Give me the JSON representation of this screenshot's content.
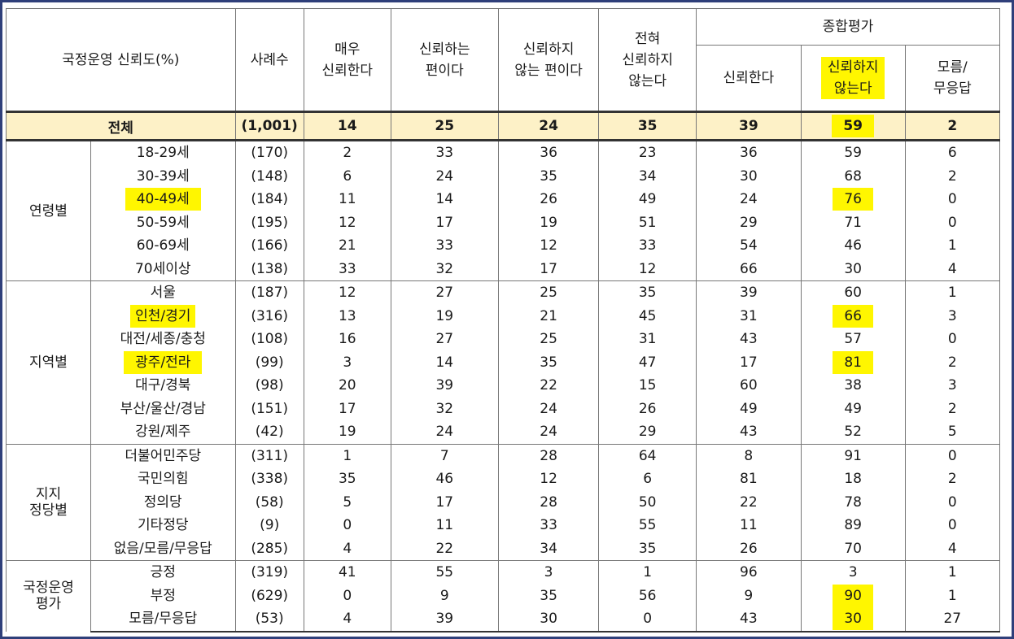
{
  "header": {
    "title": "국정운영 신뢰도(%)",
    "cases": "사례수",
    "very_trust": [
      "매우",
      "신뢰한다"
    ],
    "somewhat_trust": [
      "신뢰하는",
      "편이다"
    ],
    "somewhat_distrust": [
      "신뢰하지",
      "않는 편이다"
    ],
    "not_at_all": [
      "전혀",
      "신뢰하지",
      "않는다"
    ],
    "summary": "종합평가",
    "trust": "신뢰한다",
    "distrust": [
      "신뢰하지",
      "않는다"
    ],
    "dont_know": [
      "모름/",
      "무응답"
    ]
  },
  "total": {
    "label": "전체",
    "values": [
      "(1,001)",
      "14",
      "25",
      "24",
      "35",
      "39",
      "59",
      "2"
    ]
  },
  "groups": [
    {
      "label": [
        "연령별"
      ],
      "rows": [
        {
          "label": "18-29세",
          "values": [
            "(170)",
            "2",
            "33",
            "36",
            "23",
            "36",
            "59",
            "6"
          ]
        },
        {
          "label": "30-39세",
          "values": [
            "(148)",
            "6",
            "24",
            "35",
            "34",
            "30",
            "68",
            "2"
          ]
        },
        {
          "label": "40-49세",
          "values": [
            "(184)",
            "11",
            "14",
            "26",
            "49",
            "24",
            "76",
            "0"
          ]
        },
        {
          "label": "50-59세",
          "values": [
            "(195)",
            "12",
            "17",
            "19",
            "51",
            "29",
            "71",
            "0"
          ]
        },
        {
          "label": "60-69세",
          "values": [
            "(166)",
            "21",
            "33",
            "12",
            "33",
            "54",
            "46",
            "1"
          ]
        },
        {
          "label": "70세이상",
          "values": [
            "(138)",
            "33",
            "32",
            "17",
            "12",
            "66",
            "30",
            "4"
          ]
        }
      ]
    },
    {
      "label": [
        "지역별"
      ],
      "rows": [
        {
          "label": "서울",
          "values": [
            "(187)",
            "12",
            "27",
            "25",
            "35",
            "39",
            "60",
            "1"
          ]
        },
        {
          "label": "인천/경기",
          "values": [
            "(316)",
            "13",
            "19",
            "21",
            "45",
            "31",
            "66",
            "3"
          ]
        },
        {
          "label": "대전/세종/충청",
          "values": [
            "(108)",
            "16",
            "27",
            "25",
            "31",
            "43",
            "57",
            "0"
          ]
        },
        {
          "label": "광주/전라",
          "values": [
            "(99)",
            "3",
            "14",
            "35",
            "47",
            "17",
            "81",
            "2"
          ]
        },
        {
          "label": "대구/경북",
          "values": [
            "(98)",
            "20",
            "39",
            "22",
            "15",
            "60",
            "38",
            "3"
          ]
        },
        {
          "label": "부산/울산/경남",
          "values": [
            "(151)",
            "17",
            "32",
            "24",
            "26",
            "49",
            "49",
            "2"
          ]
        },
        {
          "label": "강원/제주",
          "values": [
            "(42)",
            "19",
            "24",
            "24",
            "29",
            "43",
            "52",
            "5"
          ]
        }
      ]
    },
    {
      "label": [
        "지지",
        "정당별"
      ],
      "rows": [
        {
          "label": "더불어민주당",
          "values": [
            "(311)",
            "1",
            "7",
            "28",
            "64",
            "8",
            "91",
            "0"
          ]
        },
        {
          "label": "국민의힘",
          "values": [
            "(338)",
            "35",
            "46",
            "12",
            "6",
            "81",
            "18",
            "2"
          ]
        },
        {
          "label": "정의당",
          "values": [
            "(58)",
            "5",
            "17",
            "28",
            "50",
            "22",
            "78",
            "0"
          ]
        },
        {
          "label": "기타정당",
          "values": [
            "(9)",
            "0",
            "11",
            "33",
            "55",
            "11",
            "89",
            "0"
          ]
        },
        {
          "label": "없음/모름/무응답",
          "values": [
            "(285)",
            "4",
            "22",
            "34",
            "35",
            "26",
            "70",
            "4"
          ]
        }
      ]
    },
    {
      "label": [
        "국정운영",
        "평가"
      ],
      "rows": [
        {
          "label": "긍정",
          "values": [
            "(319)",
            "41",
            "55",
            "3",
            "1",
            "96",
            "3",
            "1"
          ]
        },
        {
          "label": "부정",
          "values": [
            "(629)",
            "0",
            "9",
            "35",
            "56",
            "9",
            "90",
            "1"
          ]
        },
        {
          "label": "모름/무응답",
          "values": [
            "(53)",
            "4",
            "39",
            "30",
            "0",
            "43",
            "30",
            "27"
          ]
        }
      ]
    }
  ],
  "highlight_color": "#fff600",
  "total_row_color": "#fdf1c7"
}
